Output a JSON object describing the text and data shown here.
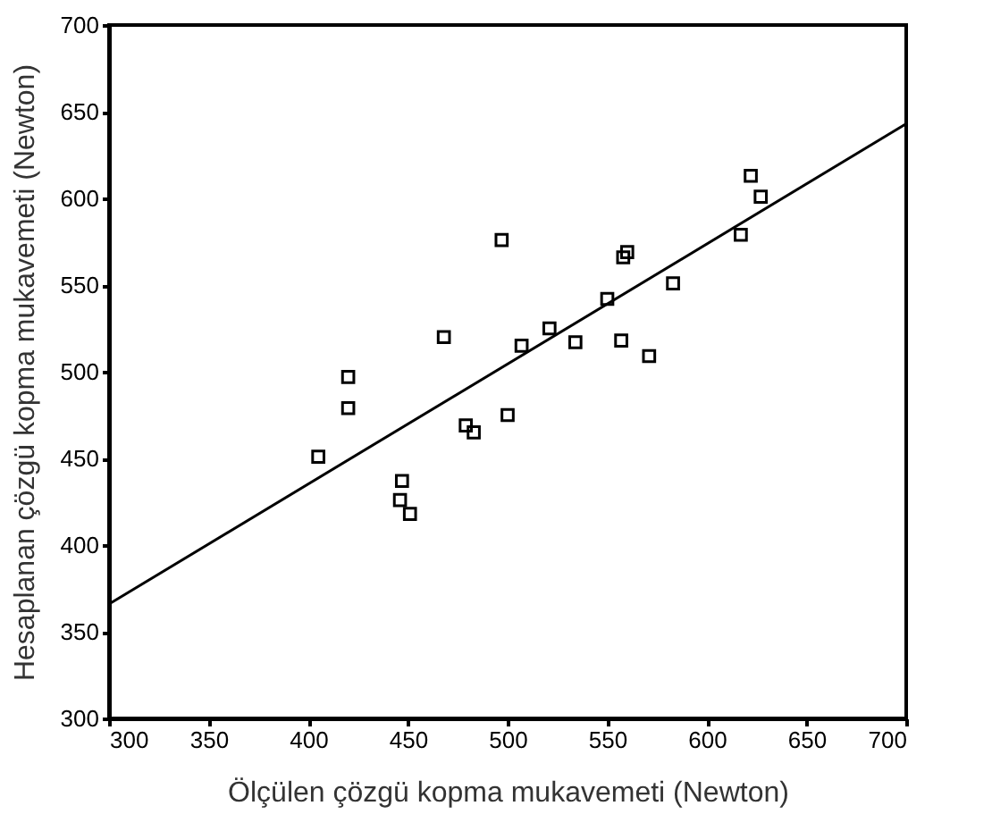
{
  "chart_data": {
    "type": "scatter",
    "xlabel": "Ölçülen çözgü  kopma mukavemeti (Newton)",
    "ylabel": "Hesaplanan  çözgü  kopma mukavemeti (Newton)",
    "xlim": [
      300,
      700
    ],
    "ylim": [
      300,
      700
    ],
    "xticks": [
      300,
      350,
      400,
      450,
      500,
      550,
      600,
      650,
      700
    ],
    "yticks": [
      300,
      350,
      400,
      450,
      500,
      550,
      600,
      650,
      700
    ],
    "grid": false,
    "series": [
      {
        "marker": "square",
        "color": "#000000",
        "x": [
          405,
          420,
          420,
          447,
          446,
          451,
          468,
          479,
          483,
          497,
          500,
          507,
          521,
          534,
          550,
          557,
          558,
          559,
          560,
          571,
          583,
          617,
          622,
          627
        ],
        "values": [
          451,
          479,
          497,
          437,
          426,
          418,
          520,
          469,
          465,
          576,
          475,
          515,
          525,
          517,
          542,
          518,
          566,
          null,
          569,
          509,
          551,
          579,
          613,
          601
        ]
      },
      {
        "type": "line",
        "color": "#000000",
        "x": [
          300,
          700
        ],
        "values": [
          366,
          643
        ]
      }
    ]
  }
}
